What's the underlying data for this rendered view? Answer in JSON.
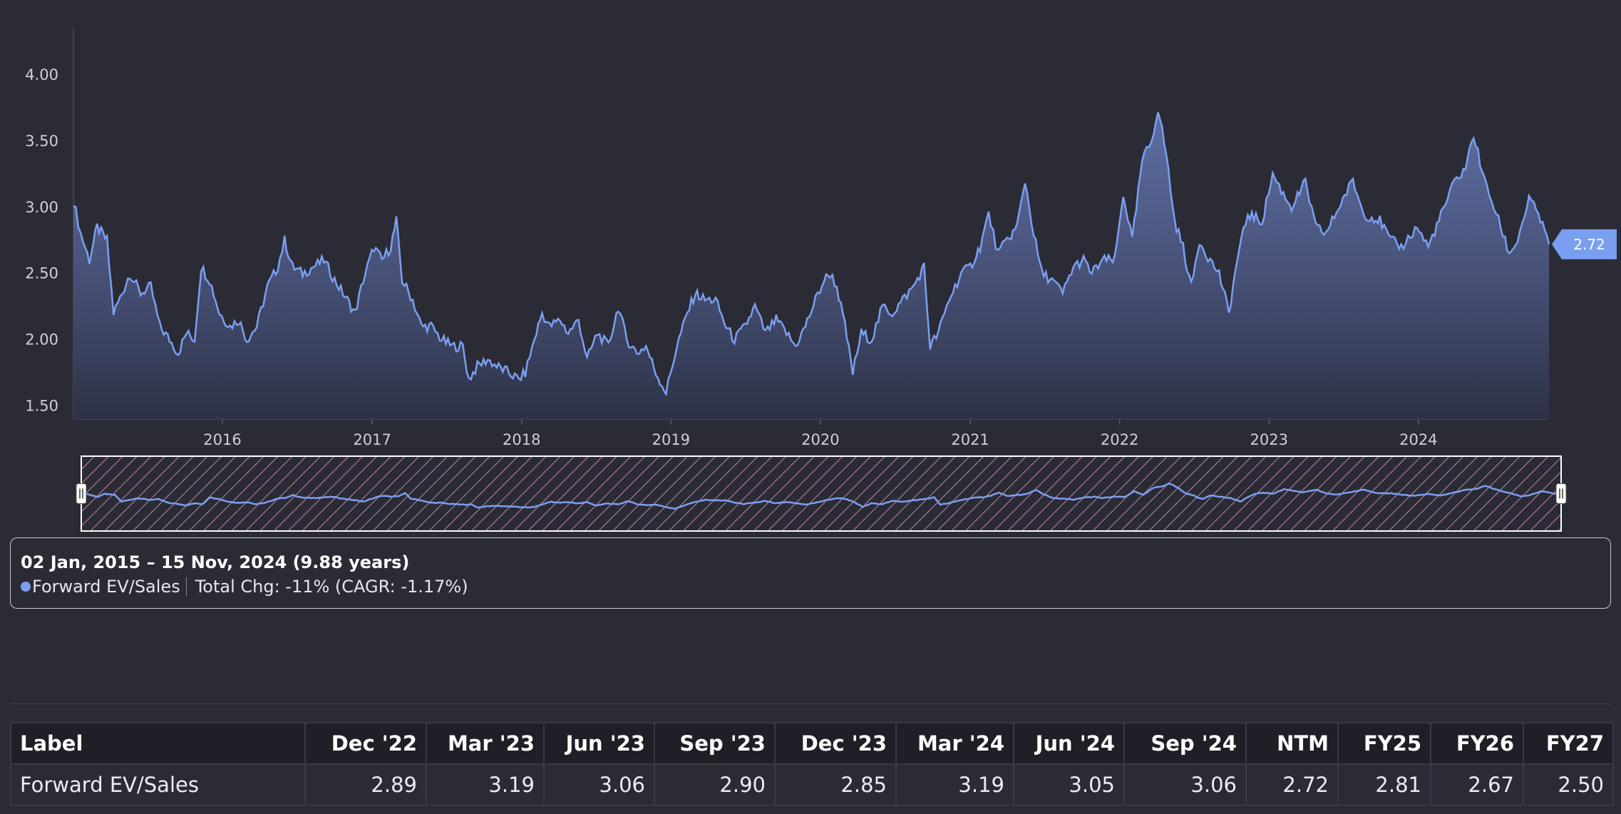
{
  "colors": {
    "line": "#7b9ff0",
    "background": "#2b2b35",
    "navigator_hatch": "#c08aa8",
    "badge": "#7b9ff0"
  },
  "chart_data": {
    "type": "area",
    "x_range": [
      "2015-01-02",
      "2024-11-15"
    ],
    "ylim": [
      1.4,
      4.35
    ],
    "y_ticks": [
      "1.50",
      "2.00",
      "2.50",
      "3.00",
      "3.50",
      "4.00"
    ],
    "x_ticks": [
      "2016",
      "2017",
      "2018",
      "2019",
      "2020",
      "2021",
      "2022",
      "2023",
      "2024"
    ],
    "grid": false,
    "series": [
      {
        "name": "Forward EV/Sales",
        "points": [
          [
            "2015-01-02",
            3.05
          ],
          [
            "2015-01-20",
            2.8
          ],
          [
            "2015-02-10",
            2.6
          ],
          [
            "2015-03-01",
            2.85
          ],
          [
            "2015-03-25",
            2.75
          ],
          [
            "2015-04-10",
            2.2
          ],
          [
            "2015-05-01",
            2.35
          ],
          [
            "2015-05-20",
            2.5
          ],
          [
            "2015-06-15",
            2.35
          ],
          [
            "2015-07-10",
            2.4
          ],
          [
            "2015-08-01",
            2.1
          ],
          [
            "2015-08-25",
            2.0
          ],
          [
            "2015-09-15",
            1.9
          ],
          [
            "2015-10-05",
            2.05
          ],
          [
            "2015-10-25",
            2.0
          ],
          [
            "2015-11-10",
            2.55
          ],
          [
            "2015-12-01",
            2.45
          ],
          [
            "2015-12-25",
            2.2
          ],
          [
            "2016-01-20",
            2.1
          ],
          [
            "2016-02-10",
            2.15
          ],
          [
            "2016-03-01",
            2.0
          ],
          [
            "2016-03-25",
            2.1
          ],
          [
            "2016-04-20",
            2.4
          ],
          [
            "2016-05-15",
            2.55
          ],
          [
            "2016-06-01",
            2.75
          ],
          [
            "2016-06-20",
            2.55
          ],
          [
            "2016-07-15",
            2.5
          ],
          [
            "2016-08-10",
            2.55
          ],
          [
            "2016-09-05",
            2.6
          ],
          [
            "2016-10-01",
            2.45
          ],
          [
            "2016-11-01",
            2.3
          ],
          [
            "2016-11-20",
            2.2
          ],
          [
            "2016-12-10",
            2.45
          ],
          [
            "2017-01-05",
            2.7
          ],
          [
            "2017-01-25",
            2.6
          ],
          [
            "2017-02-15",
            2.7
          ],
          [
            "2017-03-01",
            2.9
          ],
          [
            "2017-03-15",
            2.45
          ],
          [
            "2017-04-10",
            2.3
          ],
          [
            "2017-05-01",
            2.1
          ],
          [
            "2017-05-25",
            2.1
          ],
          [
            "2017-06-20",
            2.0
          ],
          [
            "2017-07-15",
            1.95
          ],
          [
            "2017-08-10",
            1.95
          ],
          [
            "2017-08-25",
            1.7
          ],
          [
            "2017-09-15",
            1.8
          ],
          [
            "2017-10-10",
            1.85
          ],
          [
            "2017-11-01",
            1.8
          ],
          [
            "2017-12-01",
            1.75
          ],
          [
            "2017-12-25",
            1.7
          ],
          [
            "2018-01-10",
            1.75
          ],
          [
            "2018-02-01",
            2.0
          ],
          [
            "2018-02-20",
            2.2
          ],
          [
            "2018-03-10",
            2.1
          ],
          [
            "2018-04-05",
            2.15
          ],
          [
            "2018-04-25",
            2.05
          ],
          [
            "2018-05-20",
            2.15
          ],
          [
            "2018-06-10",
            1.85
          ],
          [
            "2018-07-05",
            2.05
          ],
          [
            "2018-08-01",
            1.95
          ],
          [
            "2018-08-25",
            2.25
          ],
          [
            "2018-09-15",
            2.0
          ],
          [
            "2018-10-10",
            1.9
          ],
          [
            "2018-11-01",
            1.95
          ],
          [
            "2018-11-25",
            1.75
          ],
          [
            "2018-12-20",
            1.6
          ],
          [
            "2019-01-15",
            1.95
          ],
          [
            "2019-02-10",
            2.2
          ],
          [
            "2019-03-01",
            2.35
          ],
          [
            "2019-03-25",
            2.3
          ],
          [
            "2019-04-20",
            2.3
          ],
          [
            "2019-05-15",
            2.1
          ],
          [
            "2019-06-05",
            2.0
          ],
          [
            "2019-07-01",
            2.1
          ],
          [
            "2019-07-25",
            2.25
          ],
          [
            "2019-08-20",
            2.05
          ],
          [
            "2019-09-15",
            2.15
          ],
          [
            "2019-10-10",
            2.05
          ],
          [
            "2019-11-01",
            1.95
          ],
          [
            "2019-11-25",
            2.1
          ],
          [
            "2019-12-20",
            2.3
          ],
          [
            "2020-01-10",
            2.45
          ],
          [
            "2020-01-25",
            2.5
          ],
          [
            "2020-02-10",
            2.4
          ],
          [
            "2020-03-01",
            2.1
          ],
          [
            "2020-03-20",
            1.75
          ],
          [
            "2020-04-10",
            2.05
          ],
          [
            "2020-05-05",
            2.0
          ],
          [
            "2020-06-01",
            2.25
          ],
          [
            "2020-06-25",
            2.2
          ],
          [
            "2020-07-20",
            2.3
          ],
          [
            "2020-08-15",
            2.4
          ],
          [
            "2020-09-10",
            2.55
          ],
          [
            "2020-09-25",
            1.95
          ],
          [
            "2020-10-15",
            2.05
          ],
          [
            "2020-11-10",
            2.3
          ],
          [
            "2020-12-10",
            2.5
          ],
          [
            "2021-01-01",
            2.55
          ],
          [
            "2021-01-25",
            2.7
          ],
          [
            "2021-02-15",
            2.95
          ],
          [
            "2021-03-10",
            2.65
          ],
          [
            "2021-04-01",
            2.75
          ],
          [
            "2021-04-25",
            2.85
          ],
          [
            "2021-05-15",
            3.2
          ],
          [
            "2021-06-05",
            2.8
          ],
          [
            "2021-06-25",
            2.5
          ],
          [
            "2021-07-20",
            2.45
          ],
          [
            "2021-08-15",
            2.35
          ],
          [
            "2021-09-10",
            2.55
          ],
          [
            "2021-10-05",
            2.6
          ],
          [
            "2021-10-25",
            2.5
          ],
          [
            "2021-11-20",
            2.6
          ],
          [
            "2021-12-20",
            2.6
          ],
          [
            "2022-01-10",
            3.1
          ],
          [
            "2022-02-01",
            2.75
          ],
          [
            "2022-02-25",
            3.35
          ],
          [
            "2022-03-20",
            3.5
          ],
          [
            "2022-04-05",
            3.75
          ],
          [
            "2022-04-25",
            3.4
          ],
          [
            "2022-05-15",
            2.9
          ],
          [
            "2022-06-05",
            2.7
          ],
          [
            "2022-06-25",
            2.4
          ],
          [
            "2022-07-15",
            2.75
          ],
          [
            "2022-08-10",
            2.6
          ],
          [
            "2022-09-01",
            2.5
          ],
          [
            "2022-09-25",
            2.2
          ],
          [
            "2022-10-15",
            2.6
          ],
          [
            "2022-11-10",
            2.95
          ],
          [
            "2022-12-15",
            2.89
          ],
          [
            "2023-01-10",
            3.25
          ],
          [
            "2023-02-05",
            3.1
          ],
          [
            "2023-02-25",
            3.0
          ],
          [
            "2023-03-31",
            3.19
          ],
          [
            "2023-04-25",
            2.85
          ],
          [
            "2023-05-20",
            2.8
          ],
          [
            "2023-06-30",
            3.06
          ],
          [
            "2023-07-25",
            3.2
          ],
          [
            "2023-08-20",
            2.95
          ],
          [
            "2023-09-29",
            2.9
          ],
          [
            "2023-10-25",
            2.75
          ],
          [
            "2023-11-20",
            2.7
          ],
          [
            "2023-12-29",
            2.85
          ],
          [
            "2024-01-25",
            2.7
          ],
          [
            "2024-02-20",
            2.9
          ],
          [
            "2024-03-29",
            3.19
          ],
          [
            "2024-04-25",
            3.3
          ],
          [
            "2024-05-15",
            3.55
          ],
          [
            "2024-06-10",
            3.2
          ],
          [
            "2024-06-28",
            3.05
          ],
          [
            "2024-07-20",
            2.85
          ],
          [
            "2024-08-10",
            2.65
          ],
          [
            "2024-08-30",
            2.75
          ],
          [
            "2024-09-27",
            3.06
          ],
          [
            "2024-10-20",
            2.95
          ],
          [
            "2024-11-15",
            2.72
          ]
        ]
      }
    ],
    "last_value_label": "2.72"
  },
  "summary": {
    "range": "02 Jan, 2015 – 15 Nov, 2024 (9.88 years)",
    "series_name": "Forward EV/Sales",
    "change": "Total Chg: -11% (CAGR: -1.17%)"
  },
  "table": {
    "headers": [
      "Label",
      "Dec '22",
      "Mar '23",
      "Jun '23",
      "Sep '23",
      "Dec '23",
      "Mar '24",
      "Jun '24",
      "Sep '24",
      "NTM",
      "FY25",
      "FY26",
      "FY27"
    ],
    "rows": [
      [
        "Forward EV/Sales",
        "2.89",
        "3.19",
        "3.06",
        "2.90",
        "2.85",
        "3.19",
        "3.05",
        "3.06",
        "2.72",
        "2.81",
        "2.67",
        "2.50"
      ]
    ]
  }
}
